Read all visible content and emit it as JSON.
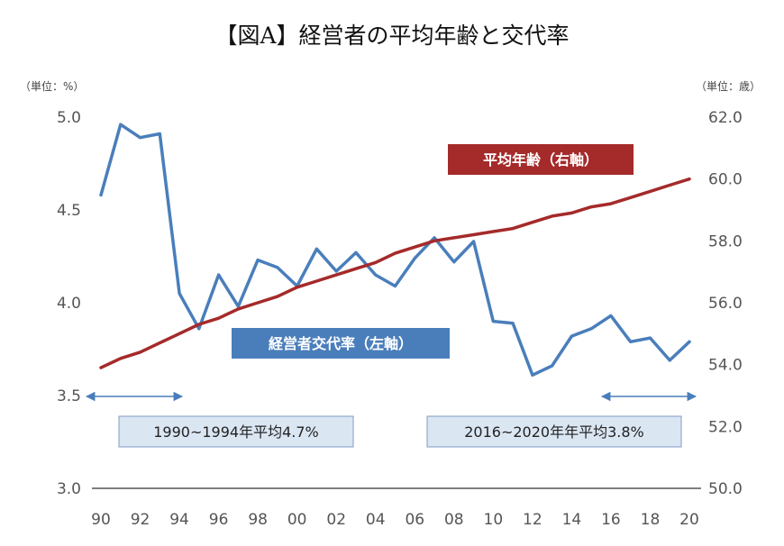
{
  "chart_data": {
    "type": "line",
    "title": "【図A】経営者の平均年齢と交代率",
    "left_axis_unit": "（単位：%）",
    "right_axis_unit": "（単位：歳）",
    "left_axis": {
      "range": [
        3.0,
        5.0
      ],
      "ticks": [
        "3.0",
        "3.5",
        "4.0",
        "4.5",
        "5.0"
      ]
    },
    "right_axis": {
      "range": [
        50.0,
        62.0
      ],
      "ticks": [
        "50.0",
        "52.0",
        "54.0",
        "56.0",
        "58.0",
        "60.0",
        "62.0"
      ]
    },
    "x_ticks": [
      "90",
      "92",
      "94",
      "96",
      "98",
      "00",
      "02",
      "04",
      "06",
      "08",
      "10",
      "12",
      "14",
      "16",
      "18",
      "20"
    ],
    "x": [
      1990,
      1991,
      1992,
      1993,
      1994,
      1995,
      1996,
      1997,
      1998,
      1999,
      2000,
      2001,
      2002,
      2003,
      2004,
      2005,
      2006,
      2007,
      2008,
      2009,
      2010,
      2011,
      2012,
      2013,
      2014,
      2015,
      2016,
      2017,
      2018,
      2019,
      2020
    ],
    "grid": false,
    "series": [
      {
        "name": "経営者交代率（左軸）",
        "axis": "left",
        "color": "#4a7ebb",
        "values": [
          4.58,
          4.96,
          4.89,
          4.91,
          4.05,
          3.86,
          4.15,
          3.98,
          4.23,
          4.19,
          4.09,
          4.29,
          4.17,
          4.27,
          4.15,
          4.09,
          4.24,
          4.35,
          4.22,
          4.33,
          3.9,
          3.89,
          3.61,
          3.66,
          3.82,
          3.86,
          3.93,
          3.79,
          3.81,
          3.69,
          3.79
        ]
      },
      {
        "name": "平均年齢（右軸）",
        "axis": "right",
        "color": "#a52a2a",
        "values": [
          53.9,
          54.2,
          54.4,
          54.7,
          55.0,
          55.3,
          55.5,
          55.8,
          56.0,
          56.2,
          56.5,
          56.7,
          56.9,
          57.1,
          57.3,
          57.6,
          57.8,
          58.0,
          58.1,
          58.2,
          58.3,
          58.4,
          58.6,
          58.8,
          58.9,
          59.1,
          59.2,
          59.4,
          59.6,
          59.8,
          60.0
        ]
      }
    ],
    "annotations": {
      "left_note": "1990~1994年平均4.7%",
      "right_note": "2016~2020年年平均3.8%"
    }
  }
}
